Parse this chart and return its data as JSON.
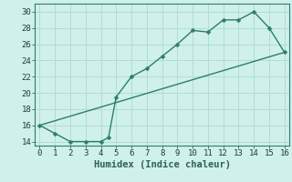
{
  "title": "",
  "xlabel": "Humidex (Indice chaleur)",
  "ylabel": "",
  "line1_x": [
    0,
    1,
    2,
    3,
    4,
    4.5,
    5,
    6,
    7,
    8,
    9,
    10,
    11,
    12,
    13,
    14,
    15,
    16
  ],
  "line1_y": [
    16,
    15,
    14,
    14,
    14,
    14.5,
    19.5,
    22,
    23,
    24.5,
    26,
    27.7,
    27.5,
    29,
    29,
    30,
    28,
    25
  ],
  "line2_x": [
    0,
    16
  ],
  "line2_y": [
    16,
    25
  ],
  "line_color": "#2e7d6e",
  "bg_color": "#cff0eb",
  "grid_color": "#b0ddd8",
  "xlim": [
    -0.3,
    16.3
  ],
  "ylim": [
    13.5,
    31.0
  ],
  "xticks": [
    0,
    1,
    2,
    3,
    4,
    5,
    6,
    7,
    8,
    9,
    10,
    11,
    12,
    13,
    14,
    15,
    16
  ],
  "yticks": [
    14,
    16,
    18,
    20,
    22,
    24,
    26,
    28,
    30
  ],
  "marker_size": 2.5,
  "line_width": 1.0,
  "tick_fontsize": 6.5,
  "xlabel_fontsize": 7.5
}
